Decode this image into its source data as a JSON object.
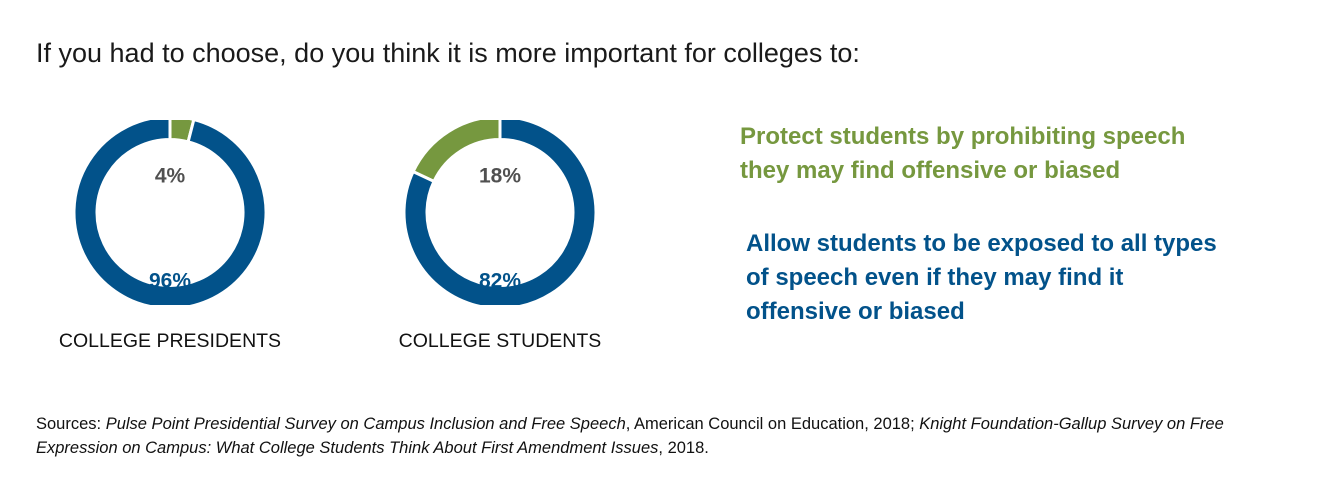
{
  "title": "If you had to choose, do you think it is more important for colleges to:",
  "colors": {
    "protect": "#76983f",
    "allow": "#02528a",
    "small_label": "#505050"
  },
  "chart_data": [
    {
      "type": "pie",
      "title": "COLLEGE PRESIDENTS",
      "slices": [
        {
          "name": "Protect students by prohibiting speech they may find offensive or biased",
          "value": 4,
          "label": "4%"
        },
        {
          "name": "Allow students to be exposed to all types of speech even if they may find it offensive or biased",
          "value": 96,
          "label": "96%"
        }
      ]
    },
    {
      "type": "pie",
      "title": "COLLEGE STUDENTS",
      "slices": [
        {
          "name": "Protect students by prohibiting speech they may find offensive or biased",
          "value": 18,
          "label": "18%"
        },
        {
          "name": "Allow students to be exposed to all types of speech even if they may find it offensive or biased",
          "value": 82,
          "label": "82%"
        }
      ]
    }
  ],
  "legend": {
    "protect": [
      "Protect students by prohibiting speech",
      "they may find offensive or biased"
    ],
    "allow": [
      "Allow students to be exposed to all types",
      "of speech even if they may find it",
      "offensive or biased"
    ]
  },
  "source": {
    "prefix": "Sources: ",
    "source1_title": "Pulse Point Presidential Survey on Campus Inclusion and Free Speech",
    "source1_rest": ", American Council on Education, 2018; ",
    "source2_title": "Knight Foundation-Gallup Survey on Free Expression on Campus: What College Students Think About First Amendment Issues",
    "source2_rest": ", 2018."
  }
}
